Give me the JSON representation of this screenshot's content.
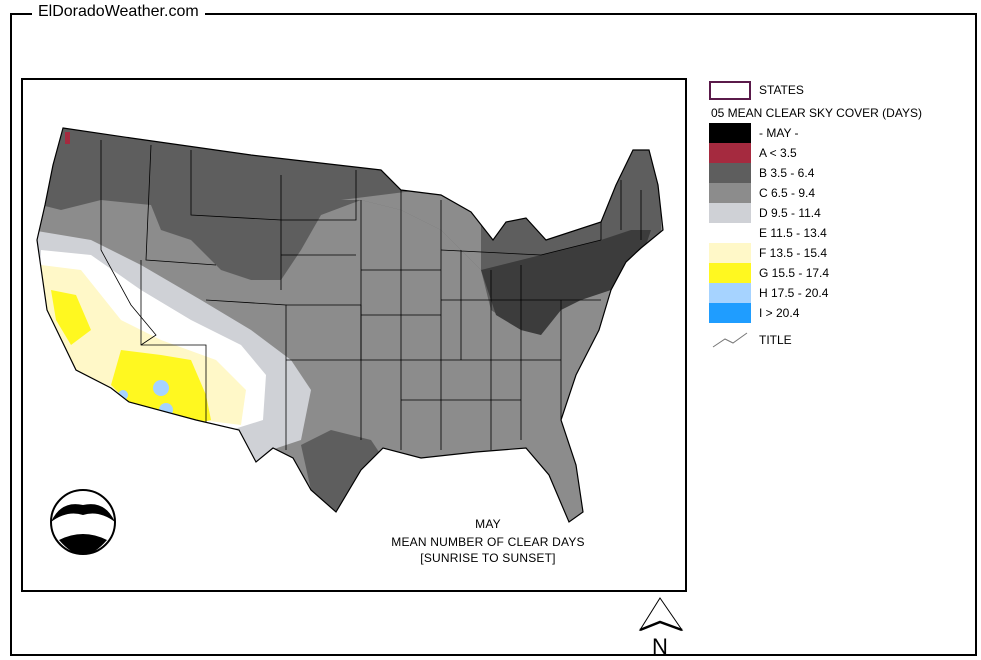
{
  "site_title": "ElDoradoWeather.com",
  "map": {
    "caption_month": "MAY",
    "caption_title": "MEAN NUMBER OF CLEAR DAYS",
    "caption_sub": "[SUNRISE TO SUNSET]",
    "logo_text": "NOAA",
    "north_label": "N"
  },
  "legend": {
    "states_label": "STATES",
    "states_color": "#5a1a4a",
    "title": "05 MEAN CLEAR SKY COVER (DAYS)",
    "items": [
      {
        "label": "- MAY -",
        "color": "#000000"
      },
      {
        "label": "A < 3.5",
        "color": "#a52a3f"
      },
      {
        "label": "B 3.5 - 6.4",
        "color": "#5e5e5e"
      },
      {
        "label": "C 6.5 - 9.4",
        "color": "#8c8c8c"
      },
      {
        "label": "D 9.5 - 11.4",
        "color": "#cfd1d6"
      },
      {
        "label": "E 11.5 - 13.4",
        "color": "#ffffff"
      },
      {
        "label": "F 13.5 - 15.4",
        "color": "#fff8c8"
      },
      {
        "label": "G 15.5 - 17.4",
        "color": "#fff820"
      },
      {
        "label": "H 17.5 - 20.4",
        "color": "#a6d3ff"
      },
      {
        "label": "I > 20.4",
        "color": "#1f9dff"
      }
    ],
    "title_line_label": "TITLE"
  }
}
